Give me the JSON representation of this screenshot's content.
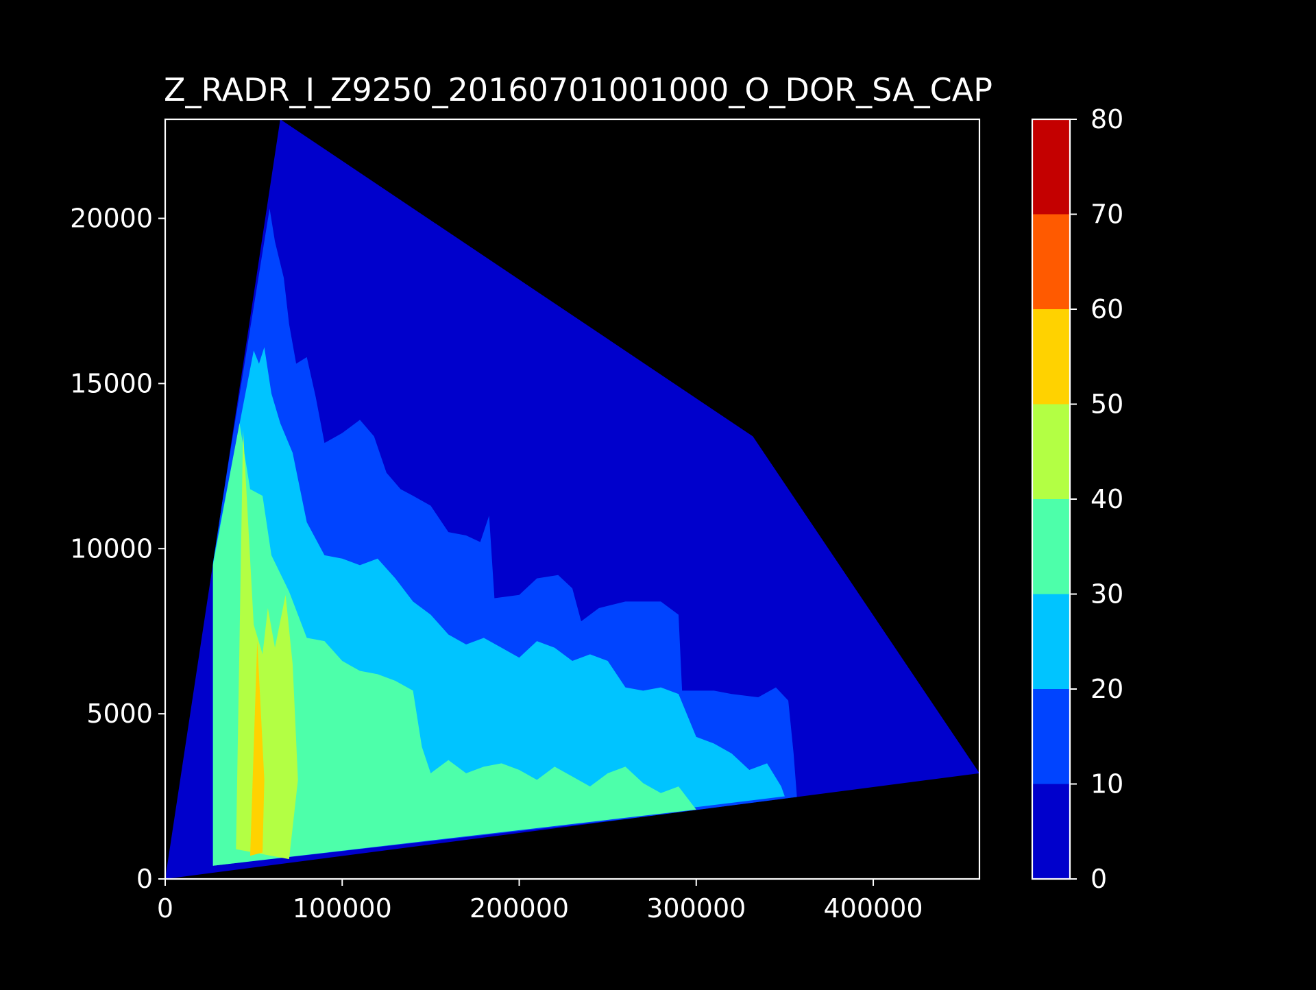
{
  "chart_data": {
    "type": "heatmap",
    "title": "Z_RADR_I_Z9250_20160701001000_O_DOR_SA_CAP",
    "xlabel": "",
    "ylabel": "",
    "xlim": [
      0,
      460000
    ],
    "ylim": [
      0,
      23000
    ],
    "x_ticks": [
      0,
      100000,
      200000,
      300000,
      400000
    ],
    "x_tick_labels": [
      "0",
      "100000",
      "200000",
      "300000",
      "400000"
    ],
    "y_ticks": [
      0,
      5000,
      10000,
      15000,
      20000
    ],
    "y_tick_labels": [
      "0",
      "5000",
      "10000",
      "15000",
      "20000"
    ],
    "background": "#000000",
    "grid": false,
    "colorbar": {
      "levels": [
        0,
        10,
        20,
        30,
        40,
        50,
        60,
        70,
        80
      ],
      "tick_labels": [
        "0",
        "10",
        "20",
        "30",
        "40",
        "50",
        "60",
        "70",
        "80"
      ],
      "colors": [
        "#0000cc",
        "#0044ff",
        "#00c4ff",
        "#4dffaa",
        "#b3ff44",
        "#ffd200",
        "#ff5a00",
        "#c40000"
      ]
    },
    "domain_outline": [
      [
        0,
        0
      ],
      [
        65000,
        23000
      ],
      [
        332000,
        13400
      ],
      [
        460000,
        3200
      ],
      [
        0,
        0
      ]
    ],
    "contour_bands": [
      {
        "level_min": 10,
        "boundary": [
          [
            27000,
            400
          ],
          [
            27000,
            9700
          ],
          [
            59000,
            20300
          ],
          [
            62000,
            19300
          ],
          [
            67000,
            18200
          ],
          [
            70000,
            16800
          ],
          [
            74000,
            15600
          ],
          [
            80000,
            15800
          ],
          [
            85000,
            14600
          ],
          [
            90000,
            13200
          ],
          [
            100000,
            13500
          ],
          [
            110000,
            13900
          ],
          [
            118000,
            13400
          ],
          [
            125000,
            12300
          ],
          [
            133000,
            11800
          ],
          [
            140000,
            11600
          ],
          [
            150000,
            11300
          ],
          [
            160000,
            10500
          ],
          [
            170000,
            10400
          ],
          [
            178000,
            10200
          ],
          [
            183000,
            11000
          ],
          [
            186000,
            8500
          ],
          [
            200000,
            8600
          ],
          [
            210000,
            9100
          ],
          [
            222000,
            9200
          ],
          [
            230000,
            8800
          ],
          [
            235000,
            7800
          ],
          [
            245000,
            8200
          ],
          [
            260000,
            8400
          ],
          [
            280000,
            8400
          ],
          [
            290000,
            8000
          ],
          [
            292000,
            5700
          ],
          [
            310000,
            5700
          ],
          [
            320000,
            5600
          ],
          [
            335000,
            5500
          ],
          [
            345000,
            5800
          ],
          [
            352000,
            5400
          ],
          [
            355000,
            3800
          ],
          [
            357000,
            2400
          ]
        ]
      },
      {
        "level_min": 20,
        "boundary": [
          [
            27000,
            400
          ],
          [
            27000,
            9600
          ],
          [
            50000,
            16000
          ],
          [
            53000,
            15600
          ],
          [
            56000,
            16100
          ],
          [
            60000,
            14700
          ],
          [
            65000,
            13800
          ],
          [
            72000,
            12900
          ],
          [
            80000,
            10800
          ],
          [
            90000,
            9800
          ],
          [
            100000,
            9700
          ],
          [
            110000,
            9500
          ],
          [
            120000,
            9700
          ],
          [
            130000,
            9100
          ],
          [
            140000,
            8400
          ],
          [
            150000,
            8000
          ],
          [
            160000,
            7400
          ],
          [
            170000,
            7100
          ],
          [
            180000,
            7300
          ],
          [
            190000,
            7000
          ],
          [
            200000,
            6700
          ],
          [
            210000,
            7200
          ],
          [
            220000,
            7000
          ],
          [
            230000,
            6600
          ],
          [
            240000,
            6800
          ],
          [
            250000,
            6600
          ],
          [
            260000,
            5800
          ],
          [
            270000,
            5700
          ],
          [
            280000,
            5800
          ],
          [
            290000,
            5600
          ],
          [
            300000,
            4300
          ],
          [
            310000,
            4100
          ],
          [
            320000,
            3800
          ],
          [
            330000,
            3300
          ],
          [
            340000,
            3500
          ],
          [
            348000,
            2800
          ],
          [
            350000,
            2500
          ]
        ]
      },
      {
        "level_min": 30,
        "boundary": [
          [
            27000,
            400
          ],
          [
            27000,
            9500
          ],
          [
            42000,
            13800
          ],
          [
            48000,
            11800
          ],
          [
            55000,
            11600
          ],
          [
            60000,
            9800
          ],
          [
            70000,
            8700
          ],
          [
            80000,
            7300
          ],
          [
            90000,
            7200
          ],
          [
            100000,
            6600
          ],
          [
            110000,
            6300
          ],
          [
            120000,
            6200
          ],
          [
            130000,
            6000
          ],
          [
            140000,
            5700
          ],
          [
            145000,
            4000
          ],
          [
            150000,
            3200
          ],
          [
            160000,
            3600
          ],
          [
            170000,
            3200
          ],
          [
            180000,
            3400
          ],
          [
            190000,
            3500
          ],
          [
            200000,
            3300
          ],
          [
            210000,
            3000
          ],
          [
            220000,
            3400
          ],
          [
            230000,
            3100
          ],
          [
            240000,
            2800
          ],
          [
            250000,
            3200
          ],
          [
            260000,
            3400
          ],
          [
            270000,
            2900
          ],
          [
            280000,
            2600
          ],
          [
            290000,
            2800
          ],
          [
            300000,
            2100
          ]
        ]
      },
      {
        "level_min": 40,
        "boundary": [
          [
            40000,
            900
          ],
          [
            44000,
            13600
          ],
          [
            50000,
            7700
          ],
          [
            55000,
            6800
          ],
          [
            58000,
            8200
          ],
          [
            62000,
            7000
          ],
          [
            68000,
            8600
          ],
          [
            72000,
            6500
          ],
          [
            75000,
            3000
          ],
          [
            70000,
            600
          ]
        ]
      },
      {
        "level_min": 50,
        "boundary": [
          [
            48000,
            700
          ],
          [
            52000,
            7200
          ],
          [
            56000,
            3000
          ],
          [
            55000,
            800
          ]
        ]
      }
    ]
  }
}
